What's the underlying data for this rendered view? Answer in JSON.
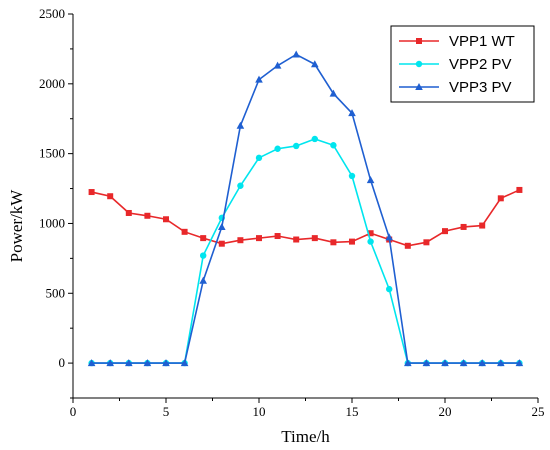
{
  "chart_data": {
    "type": "line",
    "xlabel": "Time/h",
    "ylabel": "Power/kW",
    "xlim": [
      0,
      25
    ],
    "ylim": [
      -250,
      2500
    ],
    "xticks": [
      0,
      5,
      10,
      15,
      20,
      25
    ],
    "yticks": [
      0,
      500,
      1000,
      1500,
      2000,
      2500
    ],
    "grid": false,
    "legend_position": "top-right",
    "x": [
      1,
      2,
      3,
      4,
      5,
      6,
      7,
      8,
      9,
      10,
      11,
      12,
      13,
      14,
      15,
      16,
      17,
      18,
      19,
      20,
      21,
      22,
      23,
      24
    ],
    "series": [
      {
        "name": "VPP1 WT",
        "color": "#e8282a",
        "marker": "square",
        "values": [
          1225,
          1195,
          1075,
          1055,
          1030,
          940,
          895,
          855,
          880,
          895,
          910,
          885,
          895,
          865,
          870,
          930,
          885,
          840,
          865,
          945,
          975,
          985,
          1180,
          1240
        ]
      },
      {
        "name": "VPP2 PV",
        "color": "#00e5ee",
        "marker": "circle",
        "values": [
          0,
          0,
          0,
          0,
          0,
          0,
          770,
          1040,
          1270,
          1470,
          1535,
          1555,
          1605,
          1560,
          1340,
          870,
          530,
          0,
          0,
          0,
          0,
          0,
          0,
          0
        ]
      },
      {
        "name": "VPP3 PV",
        "color": "#1f5fd1",
        "marker": "triangle",
        "values": [
          0,
          0,
          0,
          0,
          0,
          0,
          590,
          975,
          1700,
          2030,
          2130,
          2210,
          2140,
          1930,
          1790,
          1310,
          900,
          0,
          0,
          0,
          0,
          0,
          0,
          0
        ]
      }
    ]
  }
}
